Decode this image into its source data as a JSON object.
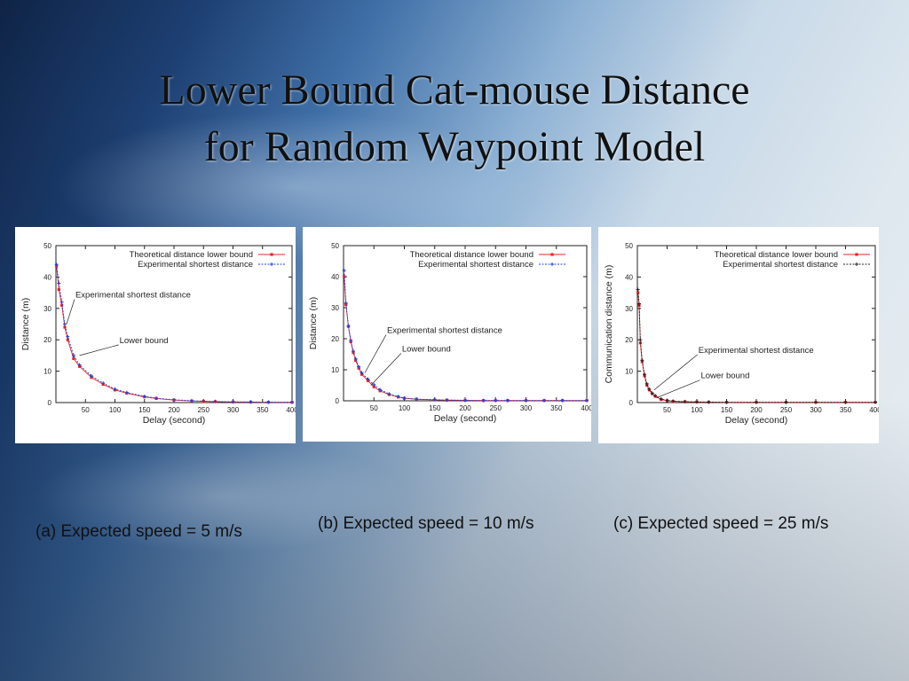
{
  "slide": {
    "title_line1": "Lower Bound Cat-mouse Distance",
    "title_line2": "for Random Waypoint Model"
  },
  "captions": [
    "(a) Expected speed = 5 m/s",
    "(b) Expected speed = 10 m/s",
    "(c) Expected speed = 25 m/s"
  ],
  "chart_data": [
    {
      "type": "line",
      "xlabel": "Delay (second)",
      "ylabel": "Distance (m)",
      "xlim": [
        0,
        400
      ],
      "ylim": [
        0,
        50
      ],
      "xticks": [
        "50",
        "100",
        "150",
        "200",
        "250",
        "300",
        "350",
        "400"
      ],
      "yticks": [
        "0",
        "10",
        "20",
        "30",
        "40",
        "50"
      ],
      "legend_position": "top-right",
      "series": [
        {
          "name": "Theoretical distance lower bound",
          "color": "#e8252a",
          "marker": "square",
          "x": [
            1,
            5,
            10,
            15,
            20,
            30,
            40,
            60,
            80,
            100,
            120,
            150,
            170,
            200,
            230,
            250,
            270,
            300,
            330,
            360,
            400
          ],
          "y": [
            43.5,
            36,
            31,
            24,
            20,
            14,
            11.5,
            8,
            5.8,
            4,
            3,
            1.8,
            1.3,
            0.8,
            0.5,
            0.4,
            0.3,
            0.2,
            0.15,
            0.1,
            0.1
          ]
        },
        {
          "name": "Experimental shortest distance",
          "color": "#2440d6",
          "marker": "plus",
          "x": [
            1,
            5,
            10,
            15,
            20,
            30,
            40,
            60,
            80,
            100,
            120,
            150,
            170,
            200,
            230,
            250,
            270,
            300,
            330,
            360,
            400
          ],
          "y": [
            44,
            38,
            32,
            25,
            21,
            15,
            12,
            8.5,
            6.2,
            4.3,
            3.2,
            2,
            1.4,
            0.9,
            0.6,
            0.45,
            0.35,
            0.25,
            0.2,
            0.15,
            0.1
          ]
        }
      ],
      "annotations": [
        {
          "text": "Experimental shortest distance",
          "x": 18,
          "y": 25
        },
        {
          "text": "Lower bound",
          "x": 40,
          "y": 15
        }
      ]
    },
    {
      "type": "line",
      "xlabel": "Delay (second)",
      "ylabel": "Distance (m)",
      "xlim": [
        0,
        400
      ],
      "ylim": [
        0,
        50
      ],
      "xticks": [
        "50",
        "100",
        "150",
        "200",
        "250",
        "300",
        "350",
        "400"
      ],
      "yticks": [
        "0",
        "10",
        "20",
        "30",
        "40",
        "50"
      ],
      "legend_position": "top-right",
      "series": [
        {
          "name": "Theoretical distance lower bound",
          "color": "#e8252a",
          "marker": "square",
          "x": [
            1,
            4,
            8,
            12,
            16,
            20,
            25,
            30,
            40,
            50,
            60,
            75,
            90,
            100,
            120,
            150,
            170,
            200,
            230,
            250,
            270,
            300,
            330,
            360,
            400
          ],
          "y": [
            40,
            31,
            24,
            19,
            15.5,
            13,
            10.5,
            8.5,
            6.5,
            4.5,
            3.2,
            2,
            1.2,
            0.8,
            0.5,
            0.3,
            0.2,
            0.15,
            0.1,
            0.1,
            0.1,
            0.1,
            0.1,
            0.1,
            0.1
          ]
        },
        {
          "name": "Experimental shortest distance",
          "color": "#2440d6",
          "marker": "plus",
          "x": [
            1,
            4,
            8,
            12,
            16,
            20,
            25,
            30,
            40,
            50,
            60,
            75,
            90,
            100,
            120,
            150,
            170,
            200,
            230,
            250,
            270,
            300,
            330,
            360,
            400
          ],
          "y": [
            42,
            31.5,
            24,
            19.5,
            16,
            13.5,
            11,
            9,
            7,
            5.2,
            3.6,
            2.2,
            1.4,
            0.9,
            0.55,
            0.35,
            0.25,
            0.15,
            0.1,
            0.1,
            0.1,
            0.1,
            0.1,
            0.1,
            0.1
          ]
        }
      ],
      "annotations": [
        {
          "text": "Experimental shortest distance",
          "x": 35,
          "y": 9
        },
        {
          "text": "Lower bound",
          "x": 45,
          "y": 5
        }
      ]
    },
    {
      "type": "line",
      "xlabel": "Delay (second)",
      "ylabel": "Communication distance (m)",
      "xlim": [
        0,
        400
      ],
      "ylim": [
        0,
        50
      ],
      "xticks": [
        "50",
        "100",
        "150",
        "200",
        "250",
        "300",
        "350",
        "400"
      ],
      "yticks": [
        "0",
        "10",
        "20",
        "30",
        "40",
        "50"
      ],
      "legend_position": "top-right",
      "series": [
        {
          "name": "Theoretical distance lower bound",
          "color": "#e8252a",
          "marker": "square",
          "x": [
            1,
            3,
            5,
            8,
            12,
            16,
            20,
            25,
            30,
            40,
            50,
            60,
            80,
            100,
            120,
            150,
            200,
            250,
            300,
            350,
            400
          ],
          "y": [
            35,
            31,
            19,
            13,
            8.5,
            5.5,
            4,
            2.8,
            2,
            1,
            0.6,
            0.4,
            0.25,
            0.2,
            0.15,
            0.1,
            0.1,
            0.1,
            0.1,
            0.1,
            0.1
          ]
        },
        {
          "name": "Experimental shortest distance",
          "color": "#222222",
          "marker": "plus",
          "x": [
            1,
            3,
            5,
            8,
            12,
            16,
            20,
            25,
            30,
            40,
            50,
            60,
            80,
            100,
            120,
            150,
            200,
            250,
            300,
            350,
            400
          ],
          "y": [
            36,
            31.5,
            20,
            13.5,
            9,
            6,
            4.3,
            3,
            2.2,
            1.1,
            0.7,
            0.45,
            0.3,
            0.2,
            0.15,
            0.1,
            0.1,
            0.1,
            0.1,
            0.1,
            0.1
          ]
        }
      ],
      "annotations": [
        {
          "text": "Experimental shortest distance",
          "x": 28,
          "y": 4
        },
        {
          "text": "Lower bound",
          "x": 32,
          "y": 1.5
        }
      ]
    }
  ]
}
